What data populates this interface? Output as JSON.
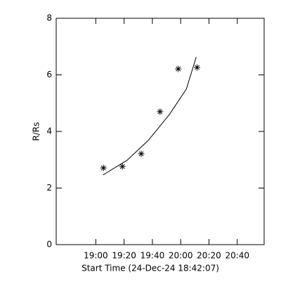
{
  "chart_data": {
    "type": "scatter",
    "xlabel": "Start Time (24-Dec-24 18:42:07)",
    "ylabel": "R/Rs",
    "xlim": [
      1112,
      1259
    ],
    "ylim": [
      0,
      8
    ],
    "xticks": [
      {
        "value": 1140,
        "label": "19:00"
      },
      {
        "value": 1160,
        "label": "19:20"
      },
      {
        "value": 1180,
        "label": "19:40"
      },
      {
        "value": 1200,
        "label": "20:00"
      },
      {
        "value": 1220,
        "label": "20:20"
      },
      {
        "value": 1240,
        "label": "20:40"
      }
    ],
    "yticks": [
      0,
      2,
      4,
      6,
      8
    ],
    "series": [
      {
        "mode": "markers",
        "color": "#000000",
        "x": [
          1145.4,
          1158.8,
          1172.1,
          1185.4,
          1198.3,
          1211.6
        ],
        "values": [
          2.71,
          2.76,
          3.21,
          4.7,
          6.21,
          6.26
        ]
      },
      {
        "mode": "line",
        "color": "#000000",
        "x": [
          1145,
          1162,
          1177,
          1192,
          1204,
          1211
        ],
        "values": [
          2.46,
          2.98,
          3.68,
          4.6,
          5.5,
          6.63
        ]
      }
    ]
  }
}
